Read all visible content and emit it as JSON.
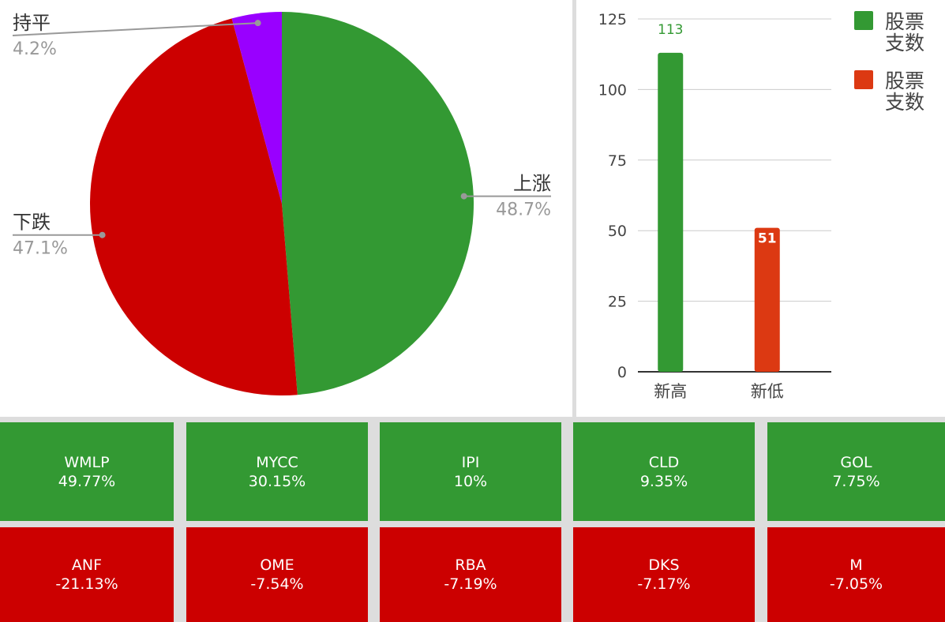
{
  "chart_data": [
    {
      "type": "pie",
      "categories": [
        "上涨",
        "下跌",
        "持平"
      ],
      "values": [
        48.7,
        47.1,
        4.2
      ],
      "value_labels": [
        "48.7%",
        "47.1%",
        "4.2%"
      ],
      "colors": [
        "#339933",
        "#cc0000",
        "#9900ff"
      ]
    },
    {
      "type": "bar",
      "categories": [
        "新高",
        "新低"
      ],
      "series": [
        {
          "name": "股票支数",
          "color": "#339933",
          "values": [
            113,
            null
          ]
        },
        {
          "name": "股票支数",
          "color": "#dc3912",
          "values": [
            null,
            51
          ]
        }
      ],
      "ylim": [
        0,
        125
      ],
      "yticks": [
        0,
        25,
        50,
        75,
        100,
        125
      ],
      "grid": true,
      "legend": "right"
    }
  ],
  "tiles": {
    "rows": [
      [
        {
          "name": "WMLP",
          "change": "49.77%"
        },
        {
          "name": "MYCC",
          "change": "30.15%"
        },
        {
          "name": "IPI",
          "change": "10%"
        },
        {
          "name": "CLD",
          "change": "9.35%"
        },
        {
          "name": "GOL",
          "change": "7.75%"
        }
      ],
      [
        {
          "name": "ANF",
          "change": "-21.13%"
        },
        {
          "name": "OME",
          "change": "-7.54%"
        },
        {
          "name": "RBA",
          "change": "-7.19%"
        },
        {
          "name": "DKS",
          "change": "-7.17%"
        },
        {
          "name": "M",
          "change": "-7.05%"
        }
      ]
    ]
  }
}
